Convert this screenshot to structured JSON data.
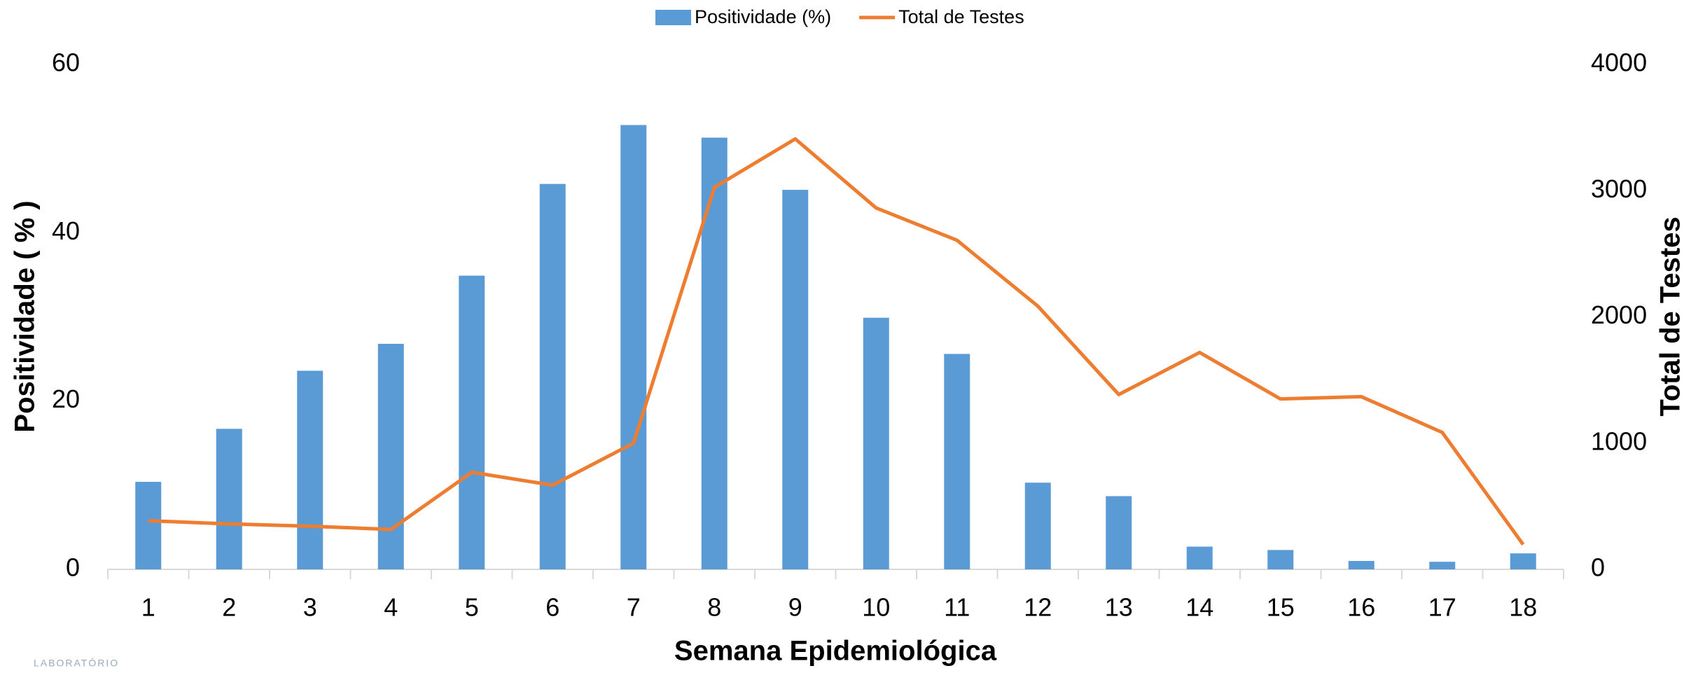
{
  "chart_data": {
    "type": "bar_line",
    "xlabel": "Semana Epidemiológica",
    "ylabel": "Positividade ( % )",
    "y2label": "Total de Testes",
    "watermark": "LABORATÓRIO",
    "categories": [
      "1",
      "2",
      "3",
      "4",
      "5",
      "6",
      "7",
      "8",
      "9",
      "10",
      "11",
      "12",
      "13",
      "14",
      "15",
      "16",
      "17",
      "18"
    ],
    "series": [
      {
        "name": "Positividade (%)",
        "type": "bar",
        "color": "#5b9bd5",
        "values": [
          10.4,
          16.7,
          23.6,
          26.8,
          34.9,
          45.8,
          52.8,
          51.3,
          45.1,
          29.9,
          25.6,
          10.3,
          8.7,
          2.7,
          2.3,
          1.0,
          0.9,
          1.9
        ]
      },
      {
        "name": "Total de Testes",
        "type": "line",
        "axis": "y2",
        "color": "#ed7d31",
        "values": [
          385,
          360,
          342,
          316,
          769,
          667,
          1000,
          3026,
          3410,
          2863,
          2607,
          2085,
          1385,
          1718,
          1350,
          1368,
          1085,
          197
        ]
      }
    ],
    "ylim": [
      0,
      60
    ],
    "yticks": [
      0,
      20,
      40,
      60
    ],
    "y2lim": [
      0,
      4000
    ],
    "y2ticks": [
      0,
      1000,
      2000,
      3000,
      4000
    ],
    "legend": "top"
  }
}
